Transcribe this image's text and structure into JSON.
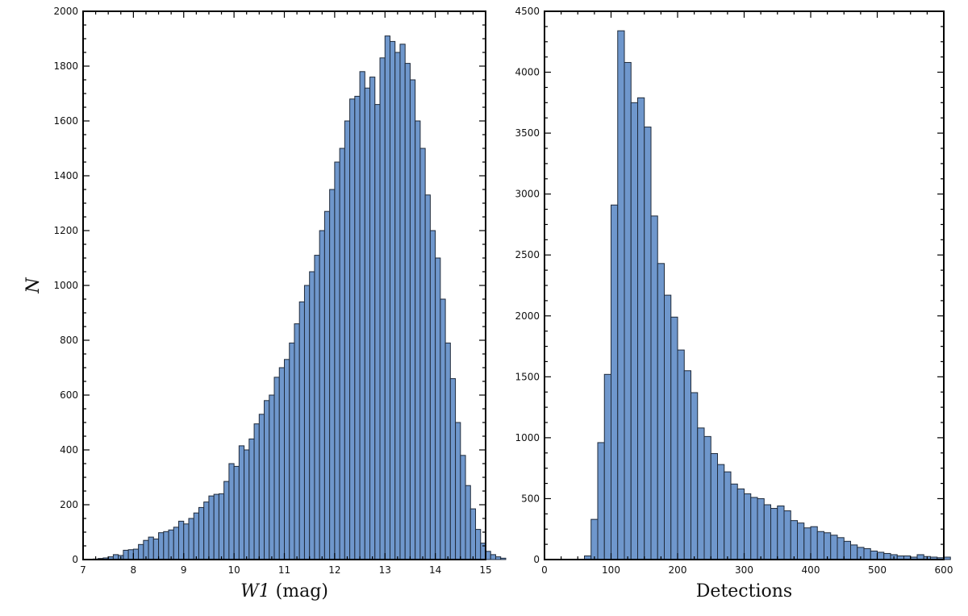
{
  "chart_data": [
    {
      "type": "bar",
      "title": "",
      "xlabel": "W1 (mag)",
      "ylabel": "N",
      "xlim": [
        7,
        15
      ],
      "ylim": [
        0,
        2000
      ],
      "xticks": [
        "7",
        "8",
        "9",
        "10",
        "11",
        "12",
        "13",
        "14",
        "15"
      ],
      "yticks": [
        "0",
        "200",
        "400",
        "600",
        "800",
        "1000",
        "1200",
        "1400",
        "1600",
        "1800",
        "2000"
      ],
      "bar_color": "#6f97cc",
      "bin_edges_start": 7.0,
      "bin_width": 0.1,
      "values": [
        0,
        0,
        2,
        4,
        6,
        10,
        18,
        15,
        34,
        36,
        38,
        55,
        70,
        82,
        75,
        98,
        102,
        108,
        118,
        140,
        130,
        150,
        170,
        190,
        210,
        232,
        238,
        240,
        285,
        350,
        340,
        415,
        400,
        440,
        495,
        530,
        580,
        600,
        665,
        700,
        730,
        790,
        860,
        940,
        1000,
        1050,
        1110,
        1200,
        1270,
        1350,
        1450,
        1500,
        1600,
        1680,
        1690,
        1780,
        1720,
        1760,
        1660,
        1830,
        1910,
        1890,
        1850,
        1880,
        1810,
        1750,
        1600,
        1500,
        1330,
        1200,
        1100,
        950,
        790,
        660,
        500,
        380,
        270,
        185,
        110,
        60,
        30,
        18,
        10,
        5
      ]
    },
    {
      "type": "bar",
      "title": "",
      "xlabel": "Detections",
      "ylabel": "",
      "xlim": [
        0,
        600
      ],
      "ylim": [
        0,
        4500
      ],
      "xticks": [
        "0",
        "100",
        "200",
        "300",
        "400",
        "500",
        "600"
      ],
      "yticks": [
        "0",
        "500",
        "1000",
        "1500",
        "2000",
        "2500",
        "3000",
        "3500",
        "4000",
        "4500"
      ],
      "bar_color": "#6f97cc",
      "bin_edges_start": 60,
      "bin_width": 10,
      "values": [
        30,
        330,
        960,
        1520,
        2910,
        4340,
        4080,
        3750,
        3790,
        3550,
        2820,
        2430,
        2170,
        1990,
        1720,
        1550,
        1370,
        1080,
        1010,
        870,
        780,
        720,
        620,
        580,
        540,
        510,
        500,
        450,
        420,
        440,
        400,
        320,
        300,
        260,
        270,
        230,
        220,
        200,
        180,
        150,
        120,
        100,
        90,
        70,
        60,
        50,
        40,
        30,
        30,
        20,
        40,
        25,
        20,
        15,
        20
      ]
    }
  ]
}
